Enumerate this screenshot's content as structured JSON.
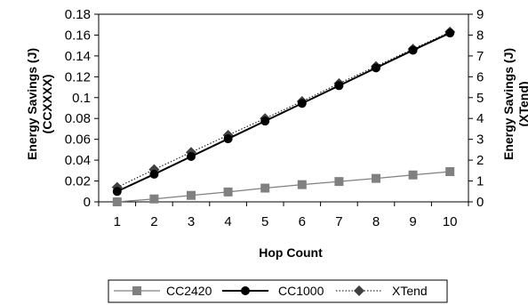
{
  "chart_data": {
    "type": "line",
    "title": "",
    "xlabel": "Hop Count",
    "ylabel_left": [
      "Energy Savings (J)",
      "(CCXXXX)"
    ],
    "ylabel_right": [
      "Energy Savings (J)",
      "(XTend)"
    ],
    "x": [
      1,
      2,
      3,
      4,
      5,
      6,
      7,
      8,
      9,
      10
    ],
    "x_ticks": [
      "1",
      "2",
      "3",
      "4",
      "5",
      "6",
      "7",
      "8",
      "9",
      "10"
    ],
    "ylim_left": [
      0,
      0.18
    ],
    "y_ticks_left": [
      "0",
      "0.02",
      "0.04",
      "0.06",
      "0.08",
      "0.1",
      "0.12",
      "0.14",
      "0.16",
      "0.18"
    ],
    "ylim_right": [
      0,
      9
    ],
    "y_ticks_right": [
      "0",
      "1",
      "2",
      "3",
      "4",
      "5",
      "6",
      "7",
      "8",
      "9"
    ],
    "grid": false,
    "legend_position": "bottom",
    "series": [
      {
        "name": "CC2420",
        "axis": "left",
        "color": "#808080",
        "marker": "square",
        "line": "solid",
        "values": [
          0.0,
          0.0028,
          0.0062,
          0.0095,
          0.0132,
          0.0165,
          0.0195,
          0.0225,
          0.0258,
          0.029
        ]
      },
      {
        "name": "CC1000",
        "axis": "left",
        "color": "#000000",
        "marker": "circle",
        "line": "solid",
        "values": [
          0.01,
          0.0265,
          0.0435,
          0.0605,
          0.0775,
          0.0945,
          0.1115,
          0.1285,
          0.1455,
          0.162
        ]
      },
      {
        "name": "XTend",
        "axis": "right",
        "color": "#404040",
        "marker": "diamond",
        "line": "dotted",
        "values": [
          0.7,
          1.55,
          2.38,
          3.2,
          4.0,
          4.82,
          5.68,
          6.5,
          7.33,
          8.15
        ]
      }
    ]
  }
}
